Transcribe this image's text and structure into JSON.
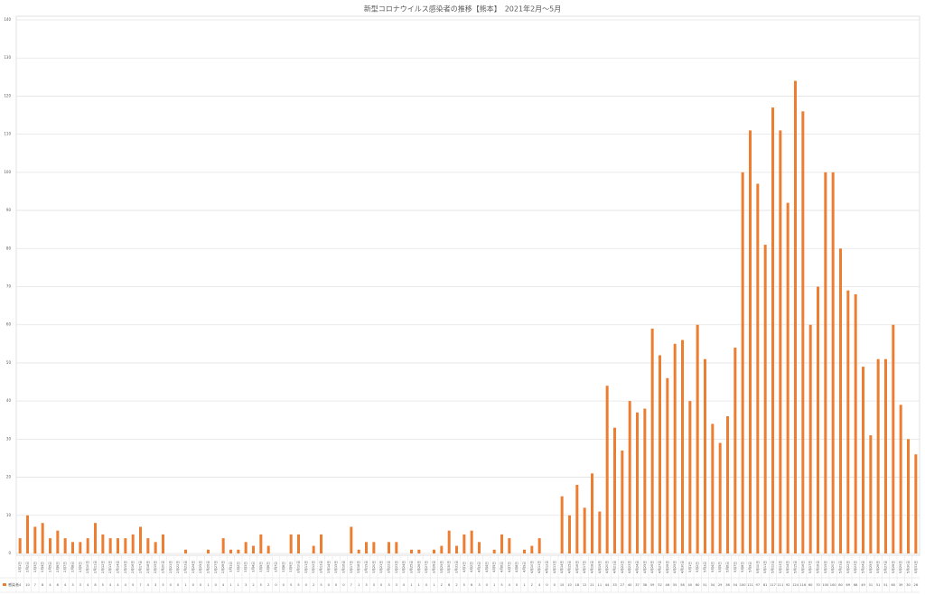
{
  "chart_data": {
    "type": "bar",
    "title": "新型コロナウイルス感染者の推移【熊本】　2021年2月～5月",
    "categories": [
      "2月1日",
      "2月2日",
      "2月3日",
      "2月4日",
      "2月5日",
      "2月6日",
      "2月7日",
      "2月8日",
      "2月9日",
      "2月10日",
      "2月11日",
      "2月12日",
      "2月13日",
      "2月14日",
      "2月15日",
      "2月16日",
      "2月17日",
      "2月18日",
      "2月19日",
      "2月20日",
      "2月21日",
      "2月22日",
      "2月23日",
      "2月24日",
      "2月25日",
      "2月26日",
      "2月27日",
      "2月28日",
      "3月1日",
      "3月2日",
      "3月3日",
      "3月4日",
      "3月5日",
      "3月6日",
      "3月7日",
      "3月8日",
      "3月9日",
      "3月10日",
      "3月11日",
      "3月12日",
      "3月13日",
      "3月14日",
      "3月15日",
      "3月16日",
      "3月17日",
      "3月18日",
      "3月19日",
      "3月20日",
      "3月21日",
      "3月22日",
      "3月23日",
      "3月24日",
      "3月25日",
      "3月26日",
      "3月27日",
      "3月28日",
      "3月29日",
      "3月30日",
      "3月31日",
      "4月1日",
      "4月2日",
      "4月3日",
      "4月4日",
      "4月5日",
      "4月6日",
      "4月7日",
      "4月8日",
      "4月9日",
      "4月10日",
      "4月11日",
      "4月12日",
      "4月13日",
      "4月14日",
      "4月15日",
      "4月16日",
      "4月17日",
      "4月18日",
      "4月19日",
      "4月20日",
      "4月21日",
      "4月22日",
      "4月23日",
      "4月24日",
      "4月25日",
      "4月26日",
      "4月27日",
      "4月28日",
      "4月29日",
      "4月30日",
      "5月1日",
      "5月2日",
      "5月3日",
      "5月4日",
      "5月5日",
      "5月6日",
      "5月7日",
      "5月8日",
      "5月9日",
      "5月10日",
      "5月11日",
      "5月12日",
      "5月13日",
      "5月14日",
      "5月15日",
      "5月16日",
      "5月17日",
      "5月18日",
      "5月19日",
      "5月20日",
      "5月21日",
      "5月22日",
      "5月23日",
      "5月24日",
      "5月25日",
      "5月26日",
      "5月27日",
      "5月28日",
      "5月29日",
      "5月30日",
      "5月31日"
    ],
    "series": [
      {
        "name": "感染者",
        "color": "#ed7d31",
        "values": [
          4,
          10,
          7,
          8,
          4,
          6,
          4,
          3,
          3,
          4,
          8,
          5,
          4,
          4,
          4,
          5,
          7,
          4,
          3,
          5,
          0,
          0,
          1,
          0,
          0,
          1,
          0,
          4,
          1,
          1,
          3,
          2,
          5,
          2,
          0,
          0,
          5,
          5,
          0,
          2,
          5,
          0,
          0,
          0,
          7,
          1,
          3,
          3,
          0,
          3,
          3,
          0,
          1,
          1,
          0,
          1,
          2,
          6,
          2,
          5,
          6,
          3,
          0,
          1,
          5,
          4,
          0,
          1,
          2,
          4,
          0,
          0,
          15,
          10,
          18,
          12,
          21,
          11,
          44,
          33,
          27,
          40,
          37,
          38,
          59,
          52,
          46,
          55,
          56,
          40,
          60,
          51,
          34,
          29,
          36,
          54,
          100,
          111,
          97,
          81,
          117,
          111,
          92,
          124,
          116,
          60,
          70,
          100,
          100,
          80,
          69,
          68,
          49,
          31,
          51,
          51,
          60,
          39,
          30,
          26
        ]
      }
    ],
    "ylim": [
      0,
      140
    ],
    "yticks": [
      0,
      10,
      20,
      30,
      40,
      50,
      60,
      70,
      80,
      90,
      100,
      110,
      120,
      130,
      140
    ],
    "grid": true
  }
}
